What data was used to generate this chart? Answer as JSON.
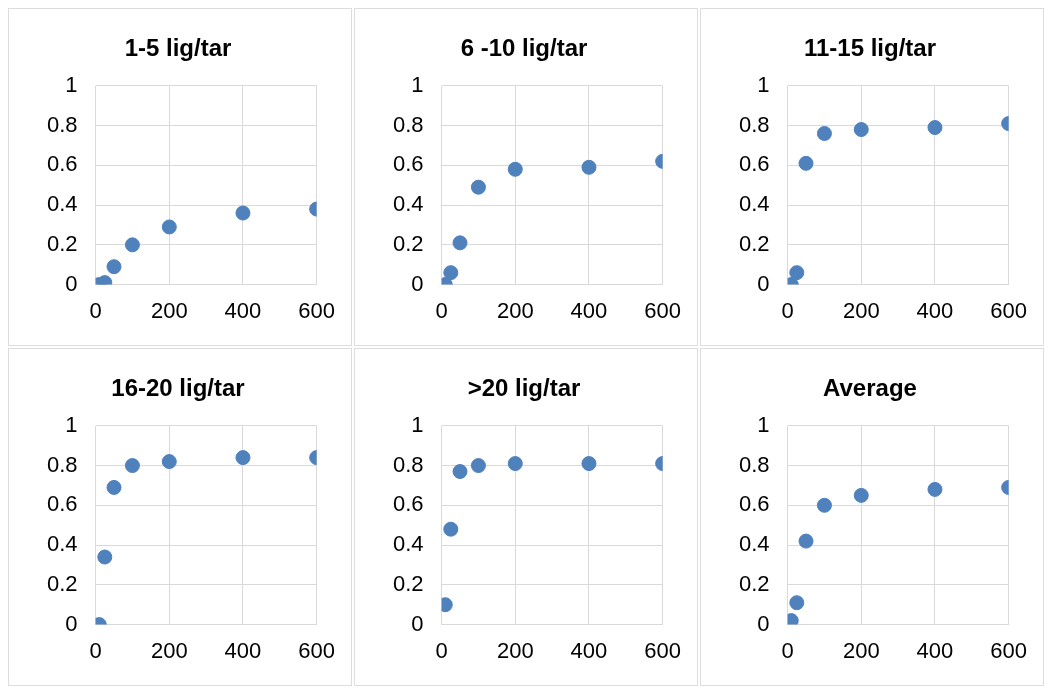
{
  "chart_data": [
    {
      "type": "scatter",
      "title": "1-5 lig/tar",
      "x": [
        10,
        25,
        50,
        100,
        200,
        400,
        600
      ],
      "series": [
        {
          "color": "#4f81bd",
          "values": [
            0,
            0.01,
            0.09,
            0.2,
            0.29,
            0.36,
            0.38
          ]
        }
      ],
      "xlim": [
        0,
        600
      ],
      "xticks": [
        0,
        200,
        400,
        600
      ],
      "ylim": [
        0,
        1
      ],
      "yticks": [
        0,
        0.2,
        0.4,
        0.6,
        0.8,
        1
      ],
      "grid": true,
      "marker": "circle"
    },
    {
      "type": "scatter",
      "title": "6 -10 lig/tar",
      "x": [
        10,
        25,
        50,
        100,
        200,
        400,
        600
      ],
      "series": [
        {
          "color": "#4f81bd",
          "values": [
            0,
            0.06,
            0.21,
            0.49,
            0.58,
            0.59,
            0.62
          ]
        }
      ],
      "xlim": [
        0,
        600
      ],
      "xticks": [
        0,
        200,
        400,
        600
      ],
      "ylim": [
        0,
        1
      ],
      "yticks": [
        0,
        0.2,
        0.4,
        0.6,
        0.8,
        1
      ],
      "grid": true,
      "marker": "circle"
    },
    {
      "type": "scatter",
      "title": "11-15 lig/tar",
      "x": [
        10,
        25,
        50,
        100,
        200,
        400,
        600
      ],
      "series": [
        {
          "color": "#4f81bd",
          "values": [
            0,
            0.06,
            0.61,
            0.76,
            0.78,
            0.79,
            0.81
          ]
        }
      ],
      "xlim": [
        0,
        600
      ],
      "xticks": [
        0,
        200,
        400,
        600
      ],
      "ylim": [
        0,
        1
      ],
      "yticks": [
        0,
        0.2,
        0.4,
        0.6,
        0.8,
        1
      ],
      "grid": true,
      "marker": "circle"
    },
    {
      "type": "scatter",
      "title": "16-20 lig/tar",
      "x": [
        10,
        25,
        50,
        100,
        200,
        400,
        600
      ],
      "series": [
        {
          "color": "#4f81bd",
          "values": [
            0,
            0.34,
            0.69,
            0.8,
            0.82,
            0.84,
            0.84
          ]
        }
      ],
      "xlim": [
        0,
        600
      ],
      "xticks": [
        0,
        200,
        400,
        600
      ],
      "ylim": [
        0,
        1
      ],
      "yticks": [
        0,
        0.2,
        0.4,
        0.6,
        0.8,
        1
      ],
      "grid": true,
      "marker": "circle"
    },
    {
      "type": "scatter",
      "title": ">20 lig/tar",
      "x": [
        10,
        25,
        50,
        100,
        200,
        400,
        600
      ],
      "series": [
        {
          "color": "#4f81bd",
          "values": [
            0.1,
            0.48,
            0.77,
            0.8,
            0.81,
            0.81,
            0.81
          ]
        }
      ],
      "xlim": [
        0,
        600
      ],
      "xticks": [
        0,
        200,
        400,
        600
      ],
      "ylim": [
        0,
        1
      ],
      "yticks": [
        0,
        0.2,
        0.4,
        0.6,
        0.8,
        1
      ],
      "grid": true,
      "marker": "circle"
    },
    {
      "type": "scatter",
      "title": "Average",
      "x": [
        10,
        25,
        50,
        100,
        200,
        400,
        600
      ],
      "series": [
        {
          "color": "#4f81bd",
          "values": [
            0.02,
            0.11,
            0.42,
            0.6,
            0.65,
            0.68,
            0.69
          ]
        }
      ],
      "xlim": [
        0,
        600
      ],
      "xticks": [
        0,
        200,
        400,
        600
      ],
      "ylim": [
        0,
        1
      ],
      "yticks": [
        0,
        0.2,
        0.4,
        0.6,
        0.8,
        1
      ],
      "grid": true,
      "marker": "circle"
    }
  ]
}
